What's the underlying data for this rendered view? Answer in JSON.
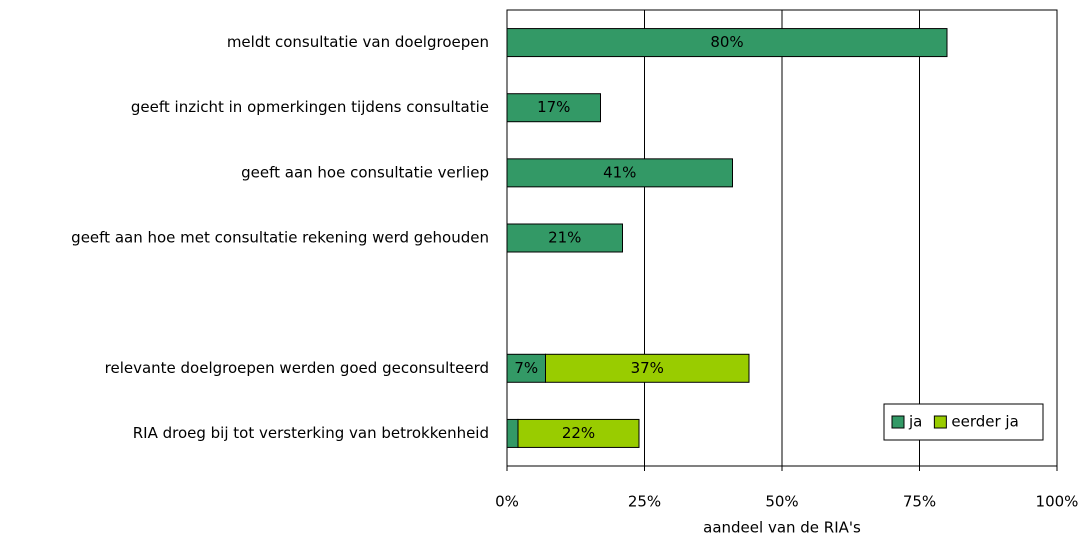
{
  "chart_data": {
    "type": "stacked-barh",
    "categories": [
      "meldt consultatie van doelgroepen",
      "geeft inzicht in opmerkingen tijdens consultatie",
      "geeft aan hoe consultatie verliep",
      "geeft aan hoe met consultatie rekening werd gehouden",
      null,
      "relevante doelgroepen werden goed geconsulteerd",
      "RIA droeg bij tot versterking van betrokkenheid"
    ],
    "series": [
      {
        "name": "ja",
        "color": "#339966",
        "values": [
          80,
          17,
          41,
          21,
          null,
          7,
          2
        ],
        "value_labels": [
          "80%",
          "17%",
          "41%",
          "21%",
          null,
          "7%",
          null
        ]
      },
      {
        "name": "eerder ja",
        "color": "#99cc00",
        "values": [
          null,
          null,
          null,
          null,
          null,
          37,
          22
        ],
        "value_labels": [
          null,
          null,
          null,
          null,
          null,
          "37%",
          "22%"
        ]
      }
    ],
    "xlabel": "aandeel van de RIA's",
    "xlim": [
      0,
      100
    ],
    "xticks": [
      {
        "value": 0,
        "label": "0%"
      },
      {
        "value": 25,
        "label": "25%"
      },
      {
        "value": 50,
        "label": "50%"
      },
      {
        "value": 75,
        "label": "75%"
      },
      {
        "value": 100,
        "label": "100%"
      }
    ],
    "grid": true,
    "legend": "lower right"
  }
}
